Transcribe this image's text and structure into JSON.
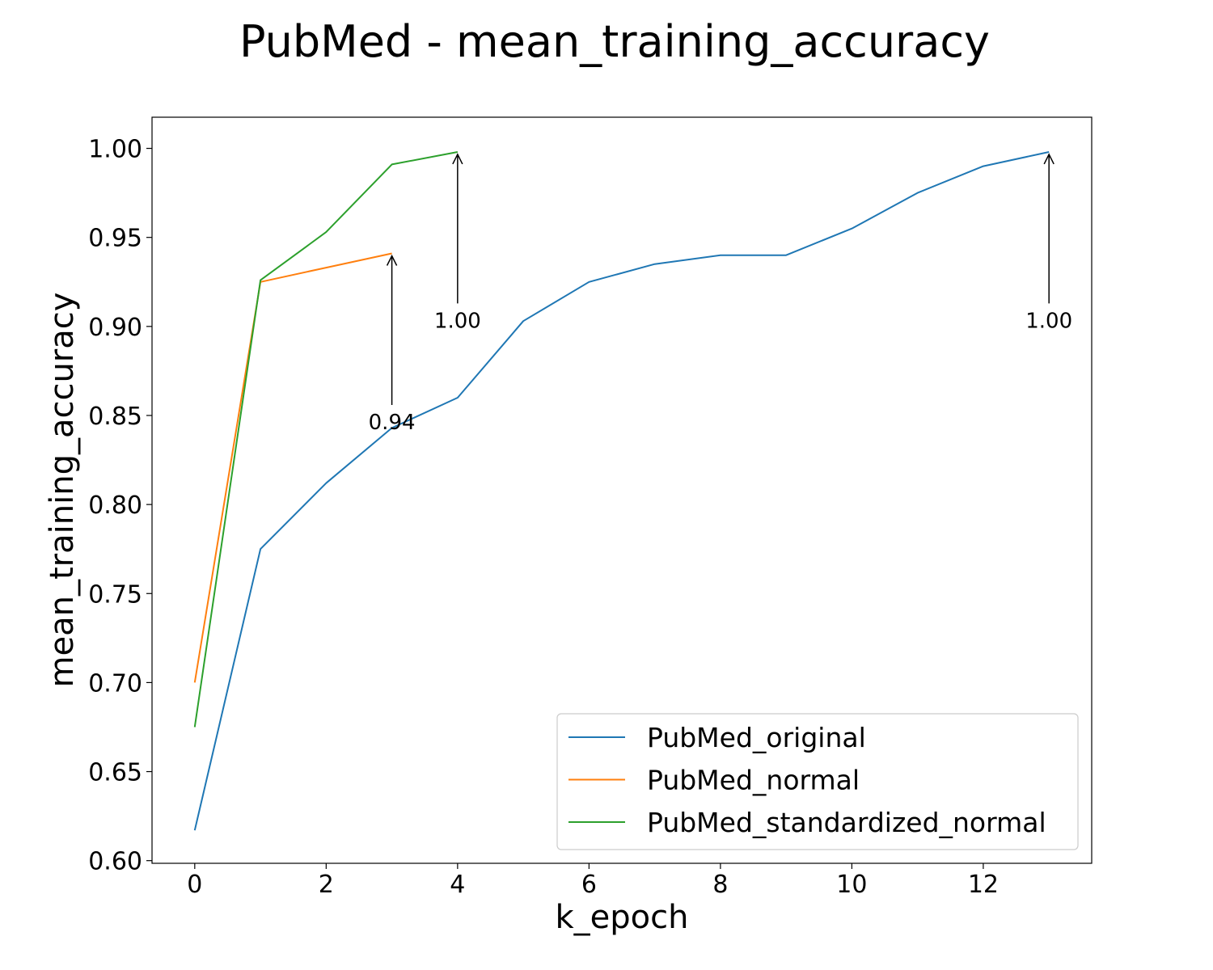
{
  "chart_data": {
    "type": "line",
    "title": "PubMed - mean_training_accuracy",
    "xlabel": "k_epoch",
    "ylabel": "mean_training_accuracy",
    "xlim": [
      -0.65,
      13.65
    ],
    "ylim": [
      0.5985,
      1.0175
    ],
    "xticks": [
      0,
      2,
      4,
      6,
      8,
      10,
      12
    ],
    "xtick_labels": [
      "0",
      "2",
      "4",
      "6",
      "8",
      "10",
      "12"
    ],
    "yticks": [
      0.6,
      0.65,
      0.7,
      0.75,
      0.8,
      0.85,
      0.9,
      0.95,
      1.0
    ],
    "ytick_labels": [
      "0.60",
      "0.65",
      "0.70",
      "0.75",
      "0.80",
      "0.85",
      "0.90",
      "0.95",
      "1.00"
    ],
    "grid": false,
    "legend_position": "lower-right",
    "series": [
      {
        "name": "PubMed_original",
        "color": "#1f77b4",
        "x": [
          0,
          1,
          2,
          3,
          4,
          5,
          6,
          7,
          8,
          9,
          10,
          11,
          12,
          13
        ],
        "values": [
          0.617,
          0.775,
          0.812,
          0.843,
          0.86,
          0.903,
          0.925,
          0.935,
          0.94,
          0.94,
          0.955,
          0.975,
          0.99,
          0.998
        ]
      },
      {
        "name": "PubMed_normal",
        "color": "#ff7f0e",
        "x": [
          0,
          1,
          2,
          3
        ],
        "values": [
          0.7,
          0.925,
          0.933,
          0.941
        ]
      },
      {
        "name": "PubMed_standardized_normal",
        "color": "#2ca02c",
        "x": [
          0,
          1,
          2,
          3,
          4
        ],
        "values": [
          0.675,
          0.926,
          0.953,
          0.991,
          0.998
        ]
      }
    ],
    "annotations": [
      {
        "text": "0.94",
        "x": 3,
        "y": 0.941,
        "text_y": 0.845
      },
      {
        "text": "1.00",
        "x": 4,
        "y": 0.998,
        "text_y": 0.902
      },
      {
        "text": "1.00",
        "x": 13,
        "y": 0.998,
        "text_y": 0.902
      }
    ]
  }
}
